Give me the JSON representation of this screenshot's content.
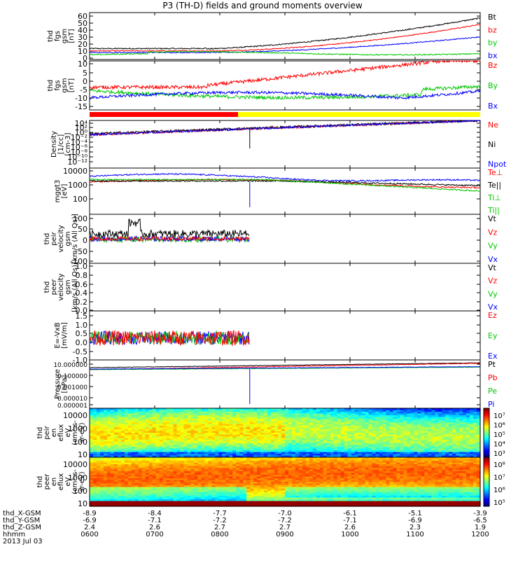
{
  "chart_data": {
    "type": "line",
    "title": "P3 (TH-D) fields and ground moments overview",
    "time_axis": {
      "rows": [
        {
          "label": "thd_X-GSM",
          "values": [
            "-8.9",
            "-8.4",
            "-7.7",
            "-7.0",
            "-6.1",
            "-5.1",
            "-3.9"
          ]
        },
        {
          "label": "thd_Y-GSM",
          "values": [
            "-6.9",
            "-7.1",
            "-7.2",
            "-7.2",
            "-7.1",
            "-6.9",
            "-6.5"
          ]
        },
        {
          "label": "thd_Z-GSM",
          "values": [
            "2.4",
            "2.6",
            "2.7",
            "2.7",
            "2.6",
            "2.3",
            "1.9"
          ]
        },
        {
          "label": "hhmm",
          "values": [
            "0600",
            "0700",
            "0800",
            "0900",
            "1000",
            "1100",
            "1200"
          ]
        }
      ],
      "date": "2013 Jul 03"
    },
    "mode_bar": {
      "segments": [
        {
          "from": 0,
          "to": 0.38,
          "color": "#ff0000"
        },
        {
          "from": 0.38,
          "to": 1.0,
          "color": "#ffff00"
        }
      ]
    },
    "panels": [
      {
        "id": "fgs-gsm-total",
        "ylabel": [
          "thd",
          "fgs",
          "gsm",
          "[nT]"
        ],
        "yticks": [
          "60",
          "50",
          "40",
          "30",
          "20",
          "10",
          "0"
        ],
        "ylim": [
          0,
          60
        ],
        "legend": [
          {
            "text": "Bt",
            "color": "#000000"
          },
          {
            "text": "bz",
            "color": "#ff0000"
          },
          {
            "text": "by",
            "color": "#00c800"
          },
          {
            "text": "bx",
            "color": "#0000ff"
          }
        ]
      },
      {
        "id": "fgs-gsm-components",
        "ylabel": [
          "thd",
          "fgs",
          "gsm",
          "[nT]"
        ],
        "yticks": [
          "10",
          "5",
          "0",
          "-5",
          "-10",
          "-15"
        ],
        "ylim": [
          -18,
          10
        ],
        "legend": [
          {
            "text": "Bz",
            "color": "#ff0000"
          },
          {
            "text": "By",
            "color": "#00c800"
          },
          {
            "text": "Bx",
            "color": "#0000ff"
          }
        ]
      },
      {
        "id": "density",
        "ylabel": [
          "Density",
          "[1/cc]",
          "[cm-3]"
        ],
        "yticks": [
          "10⁴",
          "10²",
          "10⁰",
          "10⁻²",
          "10⁻⁴",
          "10⁻⁶",
          "10⁻⁸",
          "10⁻¹⁰",
          "10⁻¹²"
        ],
        "legend": [
          {
            "text": "Ne",
            "color": "#ff0000"
          },
          {
            "text": "Ni",
            "color": "#000000"
          },
          {
            "text": "Npot",
            "color": "#0000ff"
          }
        ]
      },
      {
        "id": "temperature",
        "ylabel": [
          "mggt3",
          "[eV]"
        ],
        "yticks": [
          "10000",
          "1000",
          "100"
        ],
        "legend": [
          {
            "text": "Te⊥",
            "color": "#ff0000"
          },
          {
            "text": "Te||",
            "color": "#000000"
          },
          {
            "text": "Ti⊥",
            "color": "#00c800"
          },
          {
            "text": "Ti||",
            "color": "#00c800"
          }
        ]
      },
      {
        "id": "peir-velocity",
        "ylabel": [
          "thd",
          "peir",
          "velocity",
          "gsm",
          "[km/s (All Qs)]"
        ],
        "yticks": [
          "100",
          "50",
          "0",
          "-50",
          "-100"
        ],
        "ylim": [
          -110,
          110
        ],
        "legend": [
          {
            "text": "Vt",
            "color": "#000000"
          },
          {
            "text": "Vz",
            "color": "#ff0000"
          },
          {
            "text": "Vy",
            "color": "#00c800"
          },
          {
            "text": "Vx",
            "color": "#0000ff"
          }
        ]
      },
      {
        "id": "peer-velocity",
        "ylabel": [
          "thd",
          "peer",
          "velocity",
          "gsm",
          "[km/s (All Qs)]"
        ],
        "yticks": [
          "1.0",
          "0.8",
          "0.6",
          "0.4",
          "0.2",
          "0.0"
        ],
        "ylim": [
          0,
          1
        ],
        "legend": [
          {
            "text": "Vt",
            "color": "#000000"
          },
          {
            "text": "Vz",
            "color": "#ff0000"
          },
          {
            "text": "Vy",
            "color": "#00c800"
          },
          {
            "text": "Vx",
            "color": "#0000ff"
          }
        ]
      },
      {
        "id": "efield",
        "ylabel": [
          "E=-VxB",
          "[mV/m]"
        ],
        "yticks": [
          "1.5",
          "1.0",
          "0.5",
          "0.0",
          "-0.5",
          "-1.0"
        ],
        "ylim": [
          -1.3,
          1.6
        ],
        "legend": [
          {
            "text": "Ez",
            "color": "#ff0000"
          },
          {
            "text": "Ey",
            "color": "#00c800"
          },
          {
            "text": "Ex",
            "color": "#0000ff"
          }
        ]
      },
      {
        "id": "pressure",
        "ylabel": [
          "Pressure",
          "[nPa]"
        ],
        "yticks": [
          "10.000000",
          "0.100000",
          "0.001000",
          "0.000010",
          "0.000001"
        ],
        "legend": [
          {
            "text": "Pt",
            "color": "#000000"
          },
          {
            "text": "Pb",
            "color": "#ff0000"
          },
          {
            "text": "Pe",
            "color": "#00c800"
          },
          {
            "text": "Pi",
            "color": "#0000ff"
          }
        ]
      },
      {
        "id": "peir-spectrogram",
        "ylabel": [
          "thd",
          "peir",
          "en",
          "eflux",
          "eV",
          "(cm²-s-",
          "sr-eV)"
        ],
        "yticks": [
          "10000",
          "1000",
          "100",
          "10"
        ],
        "colorbar_ticks": [
          "10⁷",
          "10⁶",
          "10⁵",
          "10⁴",
          "10³"
        ]
      },
      {
        "id": "peer-spectrogram",
        "ylabel": [
          "thd",
          "peer",
          "en",
          "eflux",
          "eV",
          "(cm²-s-",
          "sr-eV)"
        ],
        "yticks": [
          "10000",
          "1000",
          "100",
          "10"
        ],
        "colorbar_ticks": [
          "10⁸",
          "10⁷",
          "10⁶",
          "10⁵"
        ]
      }
    ]
  }
}
